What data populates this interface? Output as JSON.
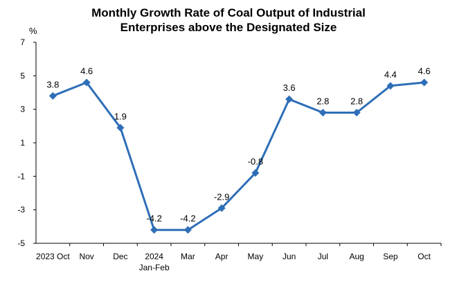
{
  "chart_data": {
    "type": "line",
    "title_lines": [
      "Monthly Growth Rate of Coal Output of Industrial",
      "Enterprises above the Designated Size"
    ],
    "ylabel": "%",
    "ylim": [
      -5,
      7
    ],
    "yticks": [
      7,
      5,
      3,
      1,
      -1,
      -3,
      -5
    ],
    "grid": false,
    "categories": [
      [
        "2023 Oct"
      ],
      [
        "Nov"
      ],
      [
        "Dec"
      ],
      [
        "2024",
        "Jan-Feb"
      ],
      [
        "Mar"
      ],
      [
        "Apr"
      ],
      [
        "May"
      ],
      [
        "Jun"
      ],
      [
        "Jul"
      ],
      [
        "Aug"
      ],
      [
        "Sep"
      ],
      [
        "Oct"
      ]
    ],
    "series": [
      {
        "values": [
          3.8,
          4.6,
          1.9,
          -4.2,
          -4.2,
          -2.9,
          -0.8,
          3.6,
          2.8,
          2.8,
          4.4,
          4.6
        ],
        "data_labels": [
          "3.8",
          "4.6",
          "1.9",
          "-4.2",
          "-4.2",
          "-2.9",
          "-0.8",
          "3.6",
          "2.8",
          "2.8",
          "4.4",
          "4.6"
        ],
        "color": "#2e6eb7",
        "marker": "diamond"
      }
    ]
  }
}
